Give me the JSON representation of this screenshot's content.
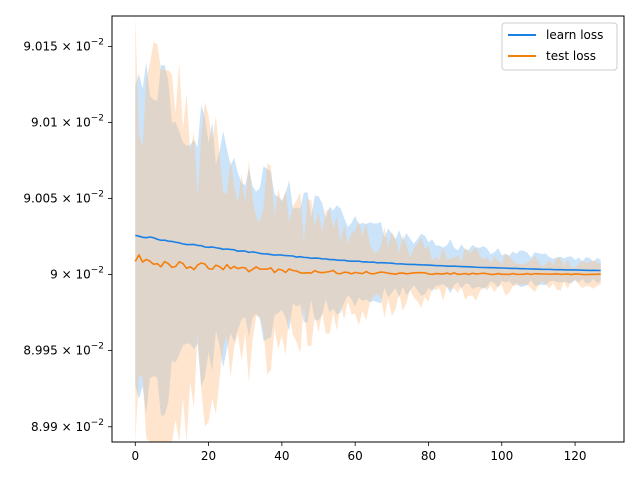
{
  "chart_data": {
    "type": "line",
    "title": "",
    "xlabel": "",
    "ylabel": "",
    "y_scale": "log",
    "xlim": [
      -6.35,
      133.35
    ],
    "ylim": [
      0.08989,
      0.09017
    ],
    "x_ticks": [
      {
        "value": 0,
        "label": "0"
      },
      {
        "value": 20,
        "label": "20"
      },
      {
        "value": 40,
        "label": "40"
      },
      {
        "value": 60,
        "label": "60"
      },
      {
        "value": 80,
        "label": "80"
      },
      {
        "value": 100,
        "label": "100"
      },
      {
        "value": 120,
        "label": "120"
      }
    ],
    "y_ticks": [
      {
        "value": 0.0899,
        "mantissa": "8.99",
        "exponent": "−2"
      },
      {
        "value": 0.08995,
        "mantissa": "8.995",
        "exponent": "−2"
      },
      {
        "value": 0.09,
        "mantissa": "9",
        "exponent": "−2"
      },
      {
        "value": 0.09005,
        "mantissa": "9.005",
        "exponent": "−2"
      },
      {
        "value": 0.0901,
        "mantissa": "9.01",
        "exponent": "−2"
      },
      {
        "value": 0.09015,
        "mantissa": "9.015",
        "exponent": "−2"
      }
    ],
    "grid": false,
    "legend_position": "top-right",
    "series": [
      {
        "name": "learn loss",
        "color": "#1a80e6",
        "band_color": "#8cc4f5",
        "x_range": [
          0,
          127
        ],
        "mean_start": 0.090026,
        "mean_end": 0.09,
        "mean_decay": 55,
        "mean_noise": 7e-07,
        "band_start": 0.000125,
        "band_end": 3e-06,
        "band_decay": 36,
        "band_noise": 0.25
      },
      {
        "name": "test loss",
        "color": "#f57f0d",
        "band_color": "#ffbe82",
        "x_range": [
          0,
          127
        ],
        "mean_start": 0.09001,
        "mean_end": 0.09,
        "mean_decay": 30,
        "mean_noise": 3.8e-06,
        "band_start": 0.000125,
        "band_end": 3e-06,
        "band_decay": 36,
        "band_noise": 0.45
      }
    ]
  }
}
